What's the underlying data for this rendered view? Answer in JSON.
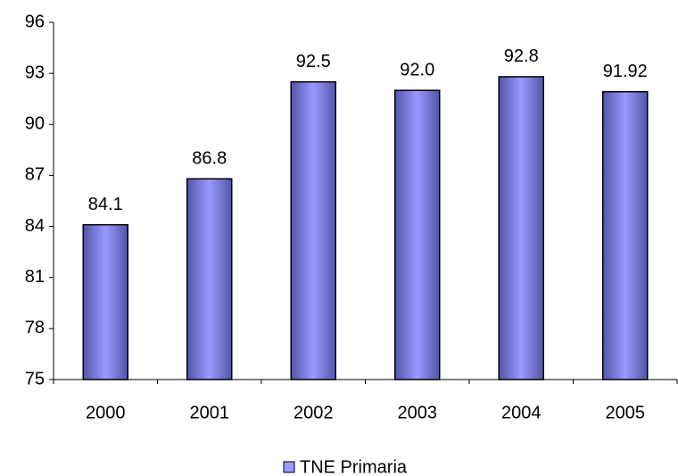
{
  "chart_data": {
    "type": "bar",
    "categories": [
      "2000",
      "2001",
      "2002",
      "2003",
      "2004",
      "2005"
    ],
    "series": [
      {
        "name": "TNE Primaria",
        "color": "#9999ff",
        "values": [
          84.1,
          86.8,
          92.5,
          92.0,
          92.8,
          91.92
        ],
        "value_labels": [
          "84.1",
          "86.8",
          "92.5",
          "92.0",
          "92.8",
          "91.92"
        ]
      }
    ],
    "ylim": [
      75,
      96
    ],
    "yticks": [
      75,
      78,
      81,
      84,
      87,
      90,
      93,
      96
    ],
    "grid": false,
    "legend": "bottom"
  }
}
